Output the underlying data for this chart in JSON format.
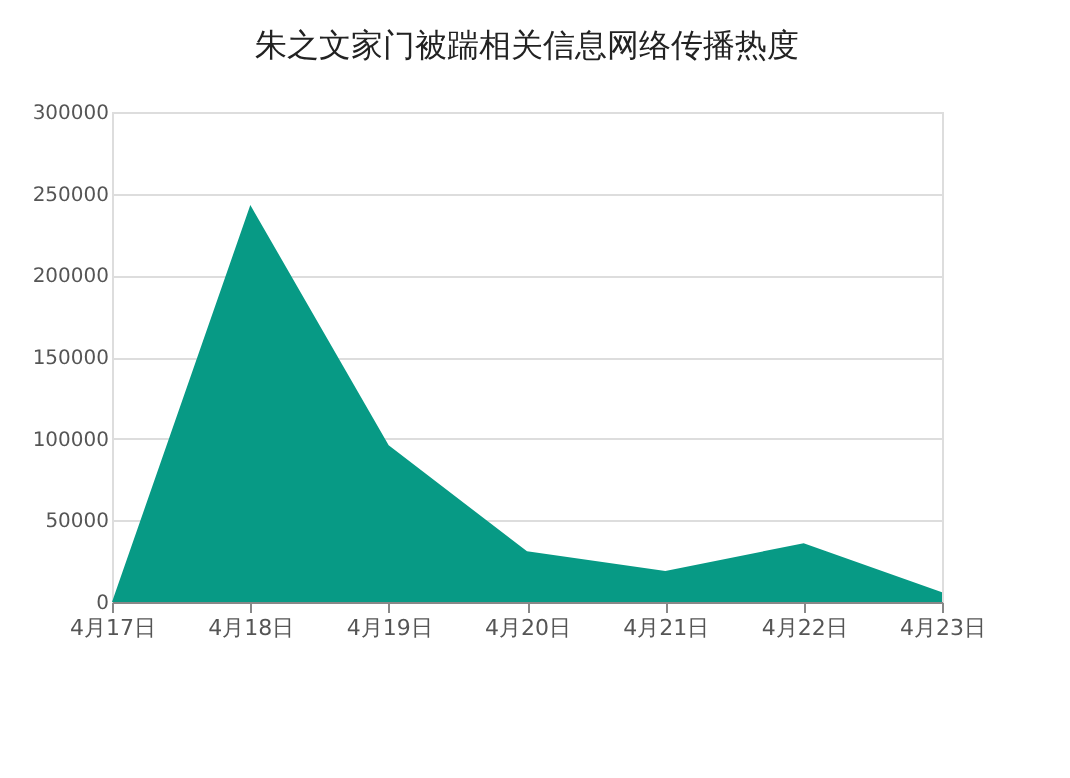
{
  "chart_data": {
    "type": "area",
    "title": "朱之文家门被踹相关信息网络传播热度",
    "categories": [
      "4月17日",
      "4月18日",
      "4月19日",
      "4月20日",
      "4月21日",
      "4月22日",
      "4月23日"
    ],
    "series": [
      {
        "color": "#079a85",
        "values": [
          0,
          243000,
          96000,
          31000,
          19000,
          36000,
          6000
        ]
      }
    ],
    "ylim": [
      0,
      300000
    ],
    "yticks": [
      0,
      50000,
      100000,
      150000,
      200000,
      250000,
      300000
    ],
    "grid": "y"
  }
}
